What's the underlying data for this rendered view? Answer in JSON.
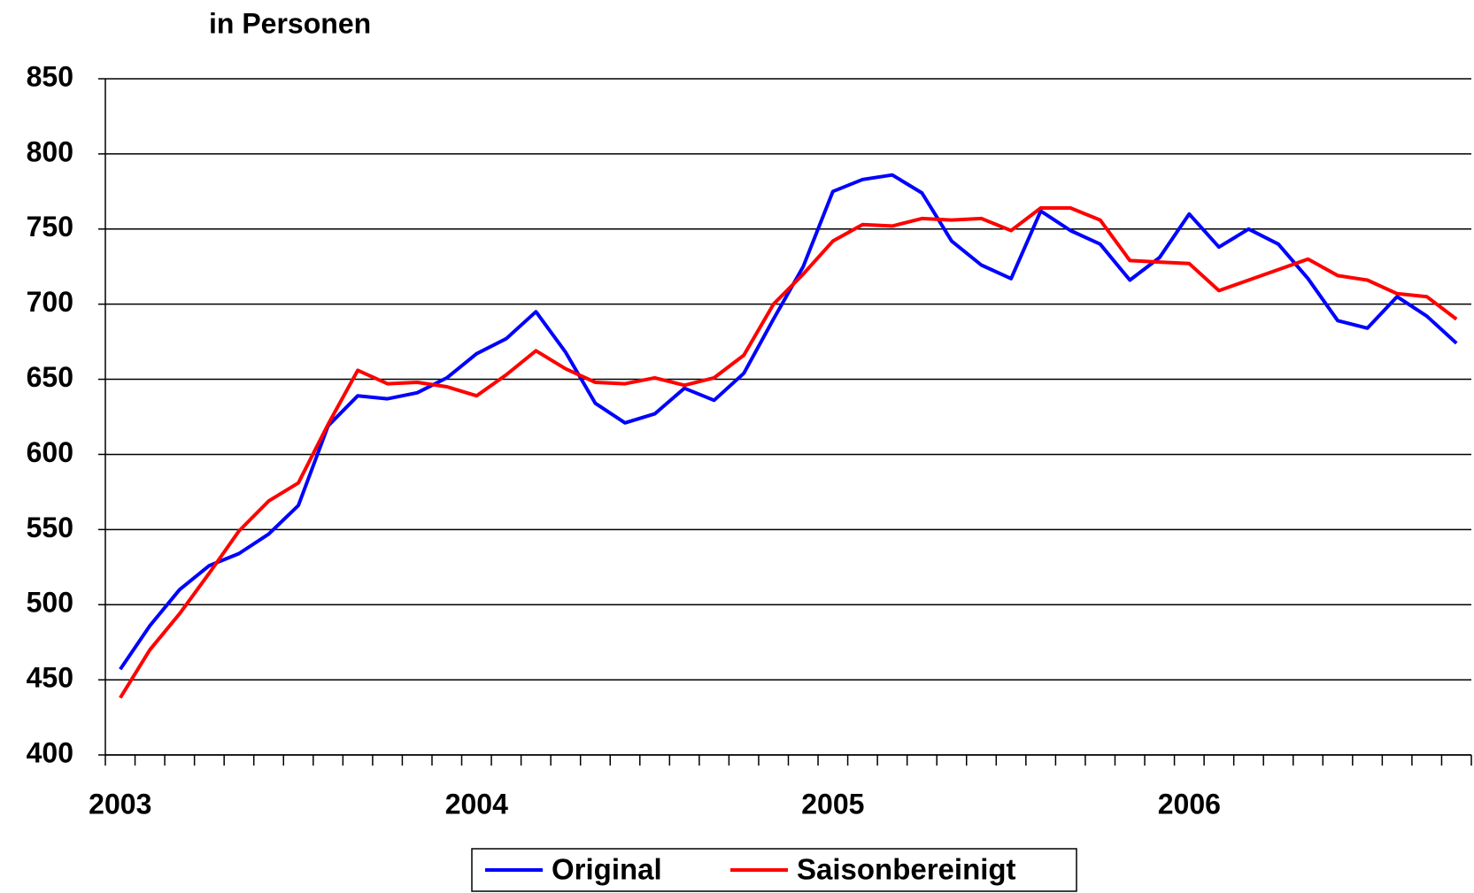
{
  "chart_data": {
    "type": "line",
    "title": "in Personen",
    "categories": [
      "2003",
      null,
      null,
      null,
      null,
      null,
      null,
      null,
      null,
      null,
      null,
      null,
      "2004",
      null,
      null,
      null,
      null,
      null,
      null,
      null,
      null,
      null,
      null,
      null,
      "2005",
      null,
      null,
      null,
      null,
      null,
      null,
      null,
      null,
      null,
      null,
      null,
      "2006",
      null,
      null,
      null,
      null,
      null,
      null,
      null,
      null,
      null
    ],
    "series": [
      {
        "name": "Original",
        "color": "#0000ff",
        "values": [
          457,
          486,
          510,
          526,
          534,
          547,
          566,
          619,
          639,
          637,
          641,
          651,
          667,
          677,
          695,
          668,
          634,
          621,
          627,
          644,
          636,
          654,
          690,
          725,
          775,
          783,
          786,
          774,
          742,
          726,
          717,
          762,
          749,
          740,
          716,
          731,
          760,
          738,
          750,
          740,
          717,
          689,
          684,
          705,
          692,
          674
        ]
      },
      {
        "name": "Saisonbereinigt",
        "color": "#ff0000",
        "values": [
          438,
          470,
          494,
          521,
          549,
          569,
          581,
          620,
          656,
          647,
          648,
          645,
          639,
          653,
          669,
          657,
          648,
          647,
          651,
          646,
          651,
          666,
          700,
          720,
          742,
          753,
          752,
          757,
          756,
          757,
          749,
          764,
          764,
          756,
          729,
          728,
          727,
          709,
          716,
          723,
          730,
          719,
          716,
          707,
          705,
          690
        ]
      }
    ],
    "ylim": [
      400,
      850
    ],
    "yticks": [
      400,
      450,
      500,
      550,
      600,
      650,
      700,
      750,
      800,
      850
    ],
    "grid": true,
    "legend": "bottom"
  }
}
